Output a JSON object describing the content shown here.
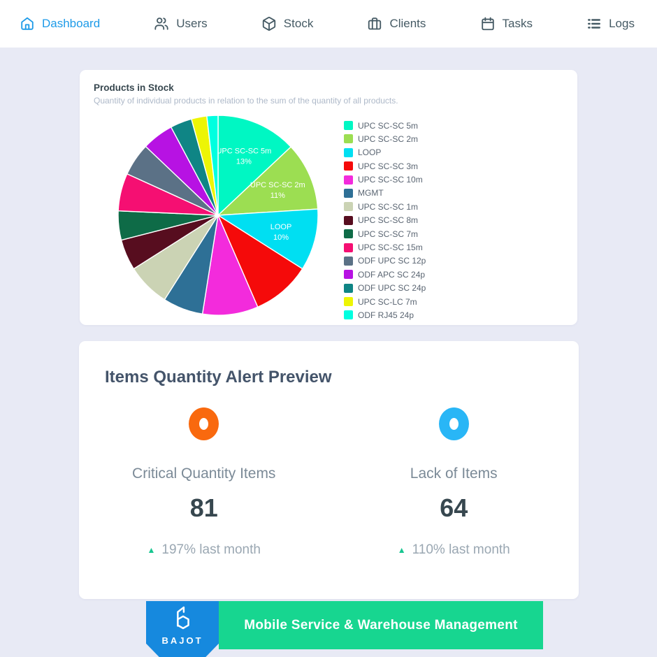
{
  "nav": {
    "items": [
      {
        "label": "Dashboard",
        "icon": "home-icon",
        "active": true
      },
      {
        "label": "Users",
        "icon": "users-icon",
        "active": false
      },
      {
        "label": "Stock",
        "icon": "package-icon",
        "active": false
      },
      {
        "label": "Clients",
        "icon": "briefcase-icon",
        "active": false
      },
      {
        "label": "Tasks",
        "icon": "calendar-icon",
        "active": false
      },
      {
        "label": "Logs",
        "icon": "list-icon",
        "active": false
      }
    ],
    "active_color": "#1e9be8",
    "inactive_color": "#455a64"
  },
  "stock_card": {
    "title": "Products in Stock",
    "subtitle": "Quantity of individual products in relation to the sum of the quantity of all products."
  },
  "chart_data": {
    "type": "pie",
    "title": "Products in Stock",
    "legend_position": "right",
    "label_threshold_percent": 10,
    "series": [
      {
        "label": "UPC SC-SC 5m",
        "value": 13,
        "color": "#00f7c3"
      },
      {
        "label": "UPC SC-SC 2m",
        "value": 11,
        "color": "#9cde52"
      },
      {
        "label": "LOOP",
        "value": 10,
        "color": "#00dff2"
      },
      {
        "label": "UPC SC-SC 3m",
        "value": 9.5,
        "color": "#f50a0a"
      },
      {
        "label": "UPC SC-SC 10m",
        "value": 9,
        "color": "#f32bdc"
      },
      {
        "label": "MGMT",
        "value": 6.5,
        "color": "#2e7096"
      },
      {
        "label": "UPC SC-SC 1m",
        "value": 7,
        "color": "#cbd3b4"
      },
      {
        "label": "UPC SC-SC 8m",
        "value": 5,
        "color": "#570d1f"
      },
      {
        "label": "UPC SC-SC 7m",
        "value": 4.7,
        "color": "#0e6b47"
      },
      {
        "label": "UPC SC-SC 15m",
        "value": 6.1,
        "color": "#f50f72"
      },
      {
        "label": "ODF UPC SC 12p",
        "value": 5.3,
        "color": "#5b7186"
      },
      {
        "label": "ODF APC SC 24p",
        "value": 5.1,
        "color": "#b712e3"
      },
      {
        "label": "ODF UPC SC 24p",
        "value": 3.5,
        "color": "#0f8585"
      },
      {
        "label": "UPC SC-LC 7m",
        "value": 2.5,
        "color": "#edf505"
      },
      {
        "label": "ODF RJ45 24p",
        "value": 1.8,
        "color": "#00ffe0"
      }
    ],
    "shown_slice_labels": [
      "UPC SC-SC 5m 13%",
      "UPC SC-SC 2m 11%",
      "LOOP 10%"
    ]
  },
  "alert_card": {
    "title": "Items Quantity Alert Preview",
    "stats": [
      {
        "label": "Critical Quantity Items",
        "value": "81",
        "trend": "197% last month",
        "trend_direction": "up",
        "ring_color": "#f9690e"
      },
      {
        "label": "Lack of Items",
        "value": "64",
        "trend": "110% last month",
        "trend_direction": "up",
        "ring_color": "#29b6f6"
      }
    ],
    "trend_arrow_color": "#17c690"
  },
  "footer": {
    "brand_name": "BAJOT",
    "banner_text": "Mobile Service & Warehouse Management",
    "badge_color": "#1689de",
    "banner_color": "#17d690"
  }
}
